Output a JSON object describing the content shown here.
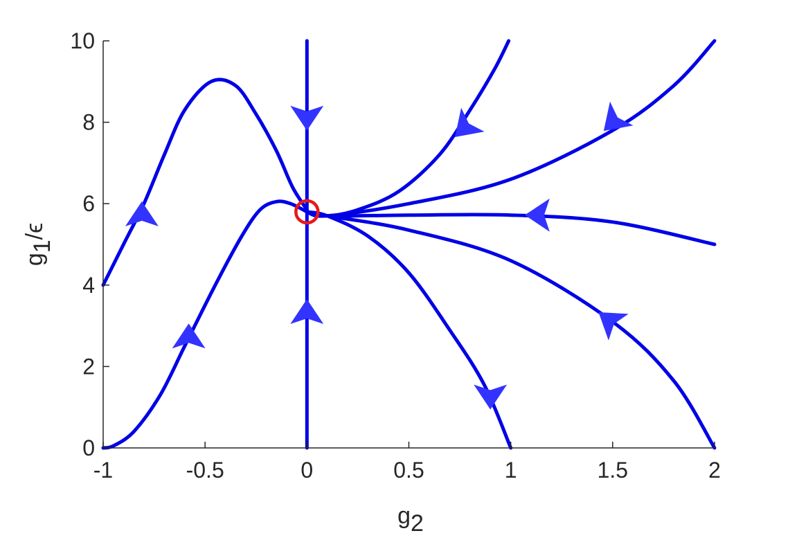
{
  "chart_data": {
    "type": "line",
    "xlabel": "g",
    "xlabel_sub": "2",
    "ylabel": "g",
    "ylabel_sub": "1",
    "ylabel_suffix": "/ϵ",
    "xlim": [
      -1,
      2
    ],
    "ylim": [
      0,
      10
    ],
    "xticks": [
      -1,
      -0.5,
      0,
      0.5,
      1,
      1.5,
      2
    ],
    "xtick_labels": [
      "-1",
      "-0.5",
      "0",
      "0.5",
      "1",
      "1.5",
      "2"
    ],
    "yticks": [
      0,
      2,
      4,
      6,
      8,
      10
    ],
    "ytick_labels": [
      "0",
      "2",
      "4",
      "6",
      "8",
      "10"
    ],
    "grid": false,
    "line_color": "#0000e6",
    "arrow_color": "#3333ff",
    "fixed_point_color": "#e61919",
    "fixed_point": {
      "x": 0.0,
      "y": 5.8
    },
    "series": [
      {
        "points": [
          [
            -1,
            4.0
          ],
          [
            -0.9,
            5.0
          ],
          [
            -0.8,
            6.0
          ],
          [
            -0.7,
            7.2
          ],
          [
            -0.6,
            8.3
          ],
          [
            -0.47,
            9.0
          ],
          [
            -0.35,
            8.9
          ],
          [
            -0.25,
            8.2
          ],
          [
            -0.15,
            7.3
          ],
          [
            -0.07,
            6.4
          ],
          [
            0.0,
            5.85
          ]
        ]
      },
      {
        "points": [
          [
            -1,
            0.0
          ],
          [
            -0.95,
            0.05
          ],
          [
            -0.85,
            0.4
          ],
          [
            -0.72,
            1.3
          ],
          [
            -0.6,
            2.5
          ],
          [
            -0.45,
            4.0
          ],
          [
            -0.32,
            5.2
          ],
          [
            -0.23,
            5.85
          ],
          [
            -0.15,
            6.05
          ],
          [
            -0.08,
            6.0
          ],
          [
            0.0,
            5.8
          ]
        ]
      },
      {
        "points": [
          [
            0,
            0
          ],
          [
            0,
            10
          ]
        ]
      },
      {
        "points": [
          [
            0.0,
            5.8
          ],
          [
            0.1,
            5.7
          ],
          [
            0.25,
            5.85
          ],
          [
            0.45,
            6.3
          ],
          [
            0.65,
            7.2
          ],
          [
            0.8,
            8.3
          ],
          [
            0.92,
            9.3
          ],
          [
            0.99,
            10.0
          ]
        ]
      },
      {
        "points": [
          [
            0.0,
            5.8
          ],
          [
            0.1,
            5.7
          ],
          [
            0.5,
            6.0
          ],
          [
            1.0,
            6.6
          ],
          [
            1.5,
            7.8
          ],
          [
            1.8,
            8.9
          ],
          [
            2.0,
            10.0
          ]
        ]
      },
      {
        "points": [
          [
            0.0,
            5.8
          ],
          [
            0.1,
            5.7
          ],
          [
            0.5,
            5.72
          ],
          [
            1.0,
            5.72
          ],
          [
            1.5,
            5.55
          ],
          [
            2.0,
            5.0
          ]
        ]
      },
      {
        "points": [
          [
            0.0,
            5.8
          ],
          [
            0.1,
            5.7
          ],
          [
            0.5,
            5.35
          ],
          [
            1.0,
            4.6
          ],
          [
            1.5,
            3.1
          ],
          [
            1.8,
            1.65
          ],
          [
            2.0,
            0.0
          ]
        ]
      },
      {
        "points": [
          [
            0.0,
            5.8
          ],
          [
            0.1,
            5.7
          ],
          [
            0.3,
            5.2
          ],
          [
            0.5,
            4.3
          ],
          [
            0.7,
            2.9
          ],
          [
            0.87,
            1.55
          ],
          [
            1.0,
            0.0
          ]
        ]
      }
    ],
    "arrows": [
      {
        "x": -0.81,
        "y": 5.75,
        "direction": "up"
      },
      {
        "x": -0.58,
        "y": 2.75,
        "direction": "up"
      },
      {
        "x": 0.0,
        "y": 8.1,
        "direction": "down"
      },
      {
        "x": 0.0,
        "y": 3.35,
        "direction": "up"
      },
      {
        "x": 0.77,
        "y": 7.85,
        "direction": "down-left"
      },
      {
        "x": 1.5,
        "y": 8.0,
        "direction": "down-left"
      },
      {
        "x": 1.13,
        "y": 5.72,
        "direction": "left"
      },
      {
        "x": 1.48,
        "y": 3.15,
        "direction": "up-left"
      },
      {
        "x": 0.9,
        "y": 1.25,
        "direction": "down"
      }
    ]
  }
}
